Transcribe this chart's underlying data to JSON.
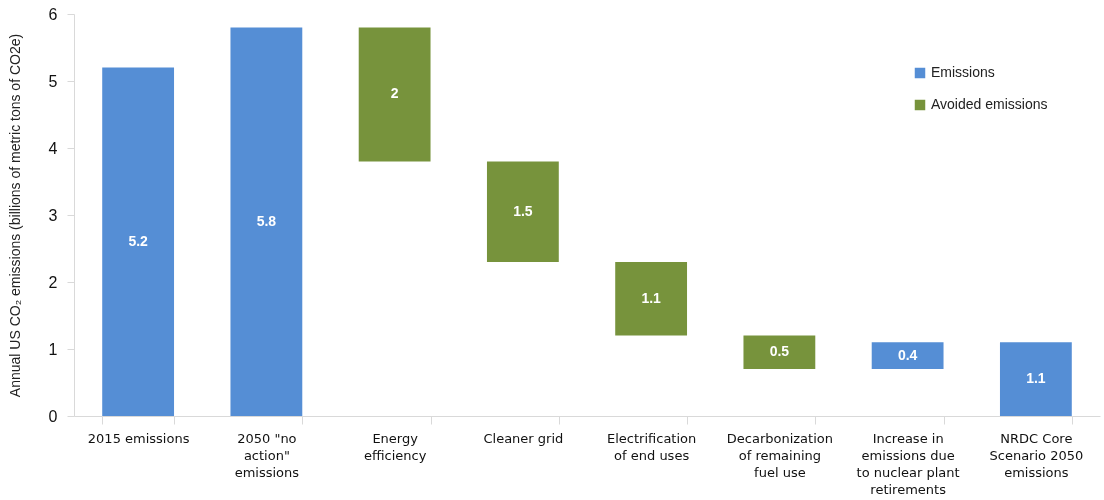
{
  "chart_data": {
    "type": "bar",
    "ylabel": "Annual US CO₂ emissions (billions of metric tons of CO2e)",
    "categories": [
      "2015 emissions",
      "2050 \"no action\" emissions",
      "Energy efficiency",
      "Cleaner grid",
      "Electrification of end uses",
      "Decarbonization of remaining fuel use",
      "Increase in emissions due to nuclear plant retirements",
      "NRDC Core Scenario 2050 emissions"
    ],
    "series": [
      {
        "name": "Emissions",
        "color": "#558ed5",
        "values": [
          5.2,
          5.8,
          null,
          null,
          null,
          null,
          0.4,
          1.1
        ],
        "base": [
          0,
          0,
          null,
          null,
          null,
          null,
          0.7,
          0
        ]
      },
      {
        "name": "Avoided emissions",
        "color": "#77933c",
        "values": [
          null,
          null,
          2,
          1.5,
          1.1,
          0.5,
          null,
          null
        ],
        "base": [
          null,
          null,
          3.8,
          2.3,
          1.2,
          0.7,
          null,
          null
        ]
      }
    ],
    "ylim": [
      0,
      6
    ],
    "yticks": [
      0,
      1,
      2,
      3,
      4,
      5,
      6
    ],
    "data_labels": true,
    "legend": "top right",
    "grid": false
  }
}
